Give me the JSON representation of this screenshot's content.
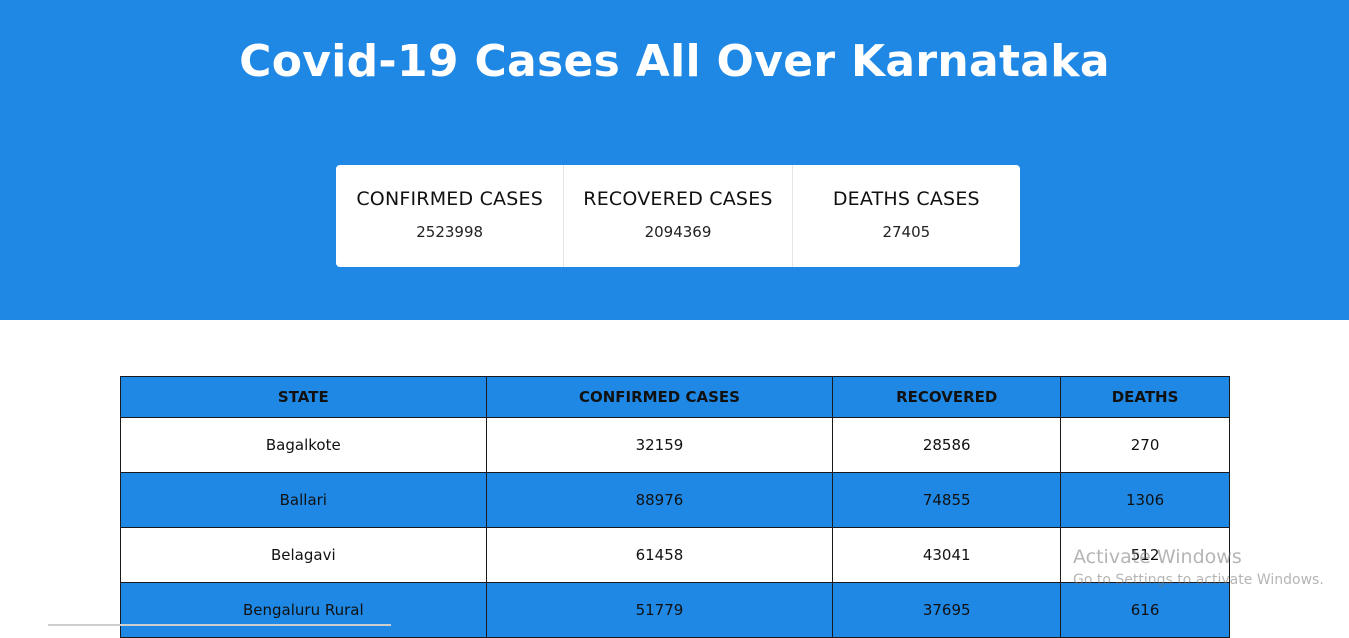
{
  "header": {
    "title": "Covid-19 Cases All Over Karnataka"
  },
  "summary": [
    {
      "label": "CONFIRMED CASES",
      "value": "2523998"
    },
    {
      "label": "RECOVERED CASES",
      "value": "2094369"
    },
    {
      "label": "DEATHS CASES",
      "value": "27405"
    }
  ],
  "table": {
    "columns": [
      "STATE",
      "CONFIRMED CASES",
      "RECOVERED",
      "DEATHS"
    ],
    "rows": [
      [
        "Bagalkote",
        "32159",
        "28586",
        "270"
      ],
      [
        "Ballari",
        "88976",
        "74855",
        "1306"
      ],
      [
        "Belagavi",
        "61458",
        "43041",
        "512"
      ],
      [
        "Bengaluru Rural",
        "51779",
        "37695",
        "616"
      ]
    ]
  },
  "watermark": {
    "title": "Activate Windows",
    "subtitle": "Go to Settings to activate Windows."
  },
  "colors": {
    "accent": "#1f88e5",
    "background": "#ffffff"
  }
}
